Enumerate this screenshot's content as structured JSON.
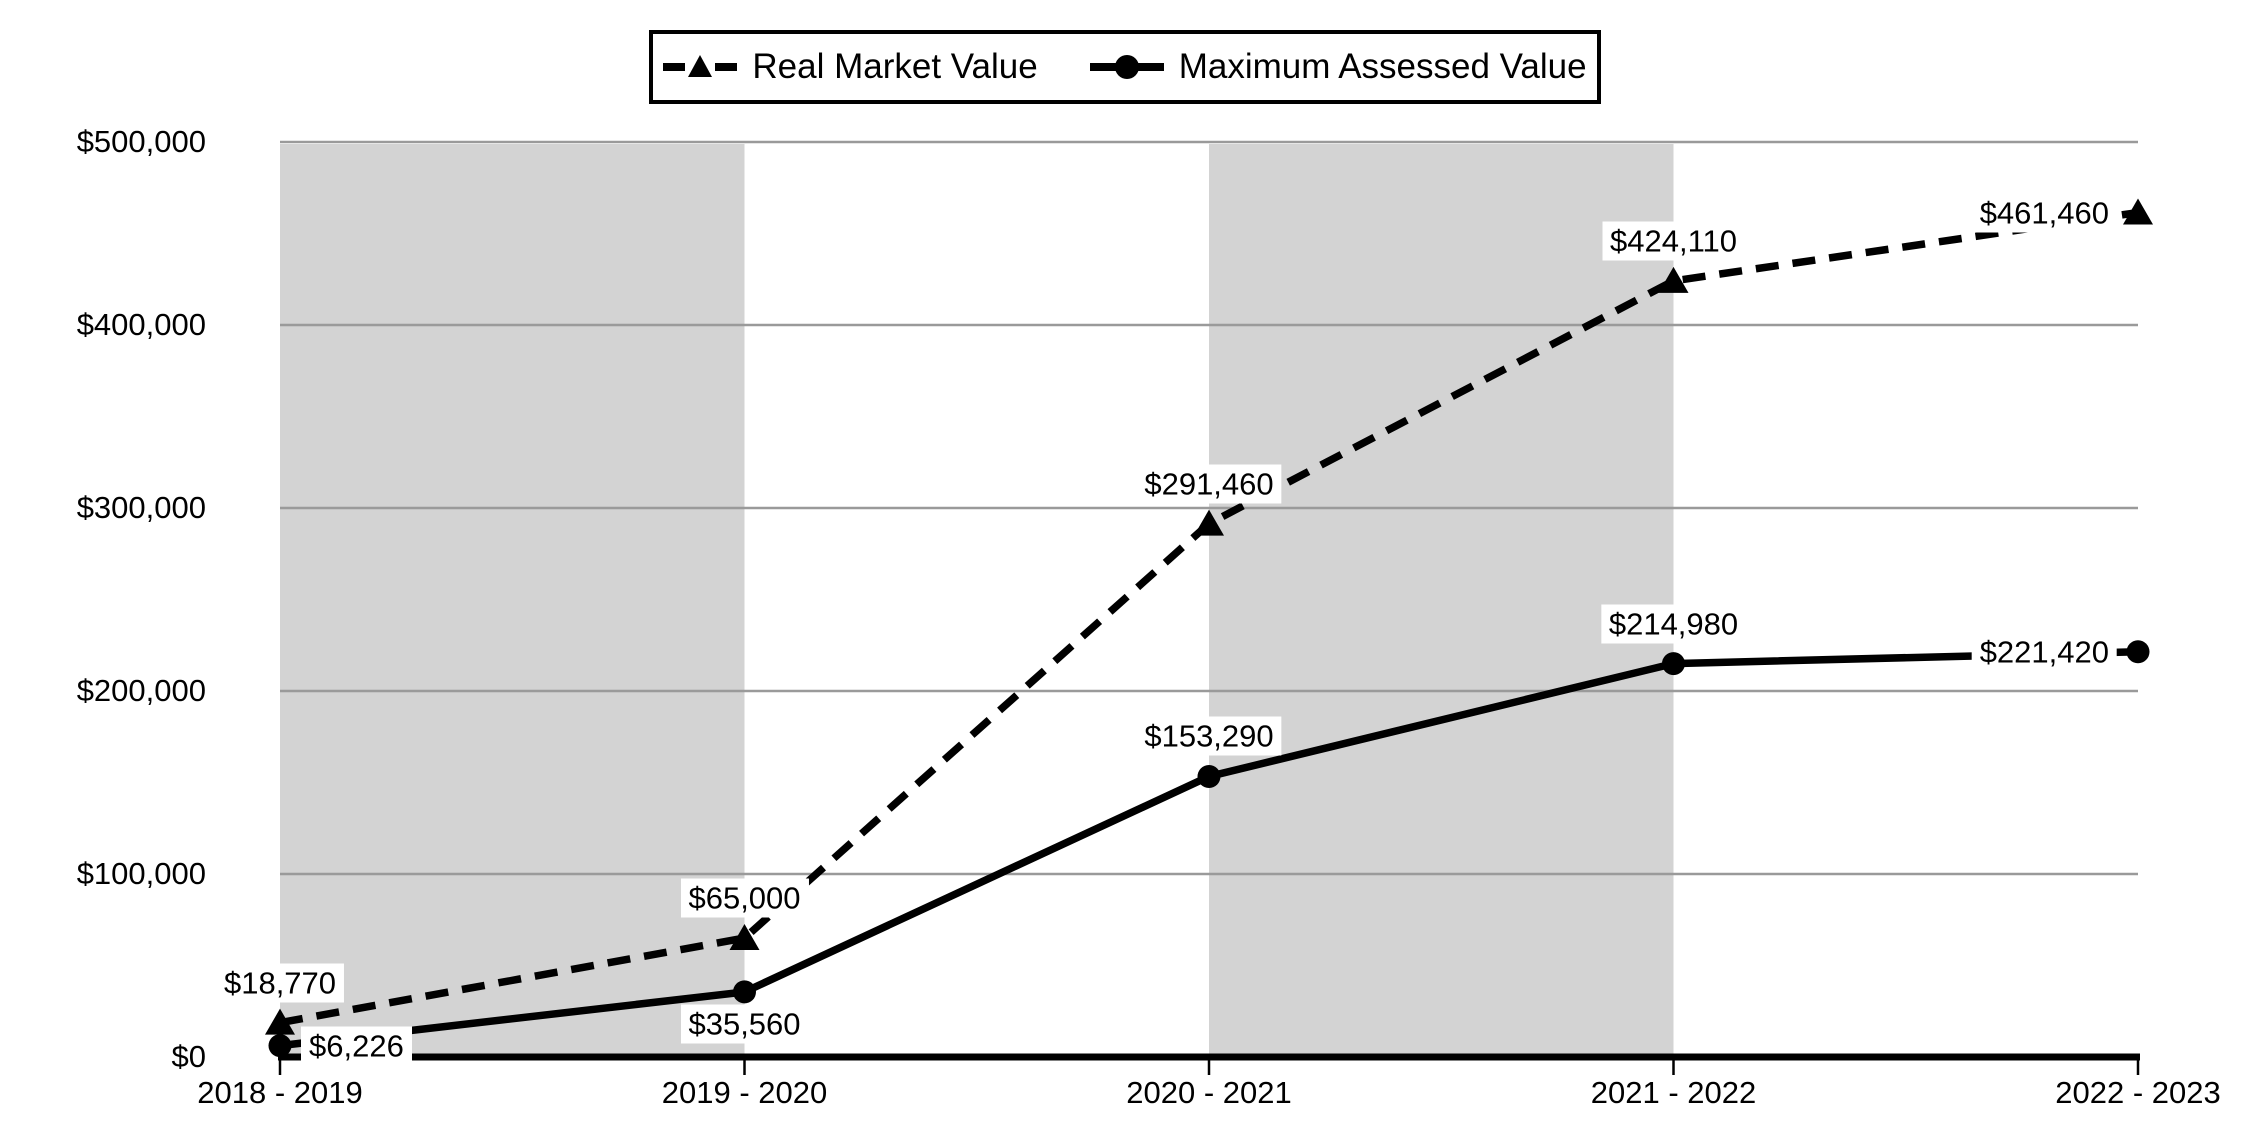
{
  "chart_data": {
    "type": "line",
    "title": "",
    "categories": [
      "2018 - 2019",
      "2019 - 2020",
      "2020 - 2021",
      "2021 - 2022",
      "2022 - 2023"
    ],
    "series": [
      {
        "name": "Real Market Value",
        "line_style": "dashed",
        "marker": "triangle",
        "values": [
          18770,
          65000,
          291460,
          424110,
          461460
        ],
        "labels": [
          "$18,770",
          "$65,000",
          "$291,460",
          "$424,110",
          "$461,460"
        ],
        "label_positions": [
          "above",
          "above",
          "above",
          "above",
          "left"
        ]
      },
      {
        "name": "Maximum Assessed Value",
        "line_style": "solid",
        "marker": "circle",
        "values": [
          6226,
          35560,
          153290,
          214980,
          221420
        ],
        "labels": [
          "$6,226",
          "$35,560",
          "$153,290",
          "$214,980",
          "$221,420"
        ],
        "label_positions": [
          "right",
          "below",
          "above",
          "above",
          "left"
        ]
      }
    ],
    "y_axis": {
      "min": 0,
      "max": 500000,
      "step": 100000,
      "tick_labels": [
        "$0",
        "$100,000",
        "$200,000",
        "$300,000",
        "$400,000",
        "$500,000"
      ]
    },
    "shaded_bands": [
      [
        0,
        1
      ],
      [
        2,
        3
      ]
    ],
    "legend_position": "top",
    "grid": "horizontal"
  },
  "colors": {
    "background": "#ffffff",
    "band_fill": "#d3d3d3",
    "gridline": "#9a9a9a",
    "axis": "#000000",
    "series": "#000000",
    "label_background": "#ffffff",
    "text": "#000000"
  }
}
